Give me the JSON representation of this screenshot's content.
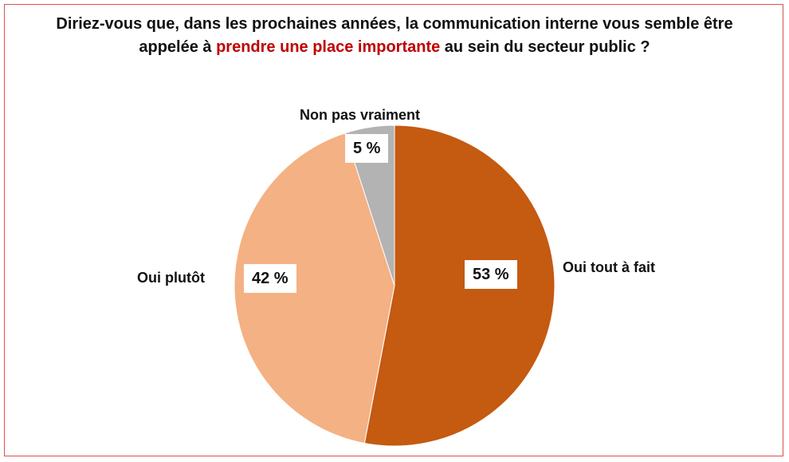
{
  "title": {
    "part1": "Diriez-vous que, dans les prochaines années, la communication interne vous semble être appelée à ",
    "highlight": "prendre une place importante",
    "part2": " au sein du secteur public ?"
  },
  "colors": {
    "highlight": "#c00000",
    "frame": "#d9534f"
  },
  "chart_data": {
    "type": "pie",
    "slices": [
      {
        "label": "Oui tout à fait",
        "value": 53,
        "value_label": "53 %",
        "color": "#c55a11"
      },
      {
        "label": "Oui plutôt",
        "value": 42,
        "value_label": "42 %",
        "color": "#f4b183"
      },
      {
        "label": "Non pas vraiment",
        "value": 5,
        "value_label": "5 %",
        "color": "#b3b3b3"
      }
    ],
    "start": "12 o'clock",
    "direction": "clockwise"
  }
}
